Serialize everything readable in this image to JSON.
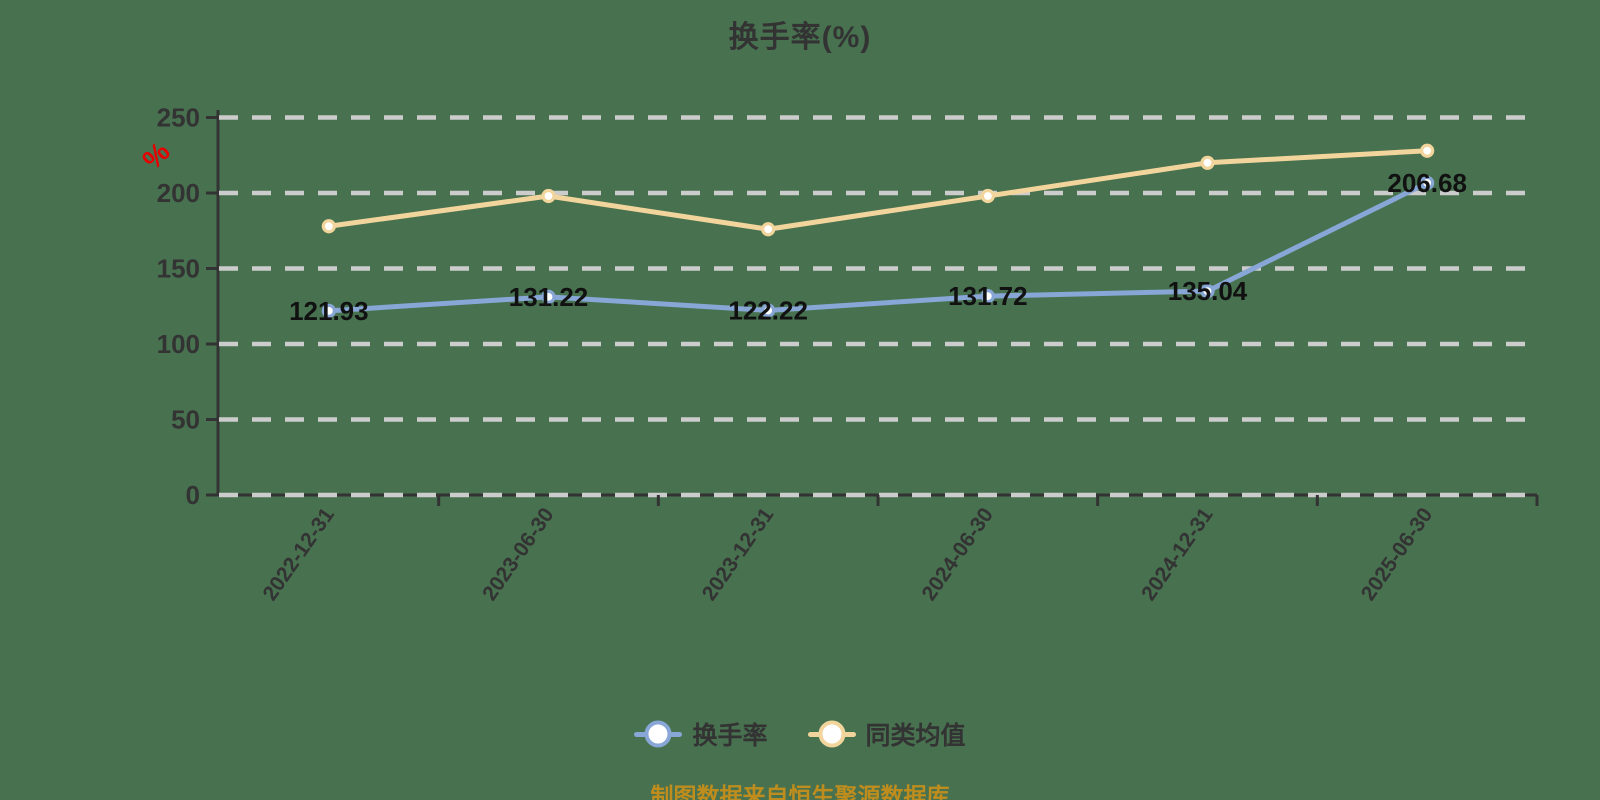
{
  "title": "换手率(%)",
  "y_axis_unit": "%",
  "footer": "制图数据来自恒生聚源数据库",
  "colors": {
    "background": "#47714f",
    "axis": "#333333",
    "gridline": "#cccccc",
    "text": "#333333",
    "value_label": "#111111",
    "unit_label": "#e60000",
    "footer_text": "#be8d1e",
    "series_turnover": "#88a6d6",
    "series_average": "#f2d59c",
    "marker_fill": "#ffffff"
  },
  "legend": {
    "items": [
      {
        "label": "换手率",
        "color": "#88a6d6"
      },
      {
        "label": "同类均值",
        "color": "#f2d59c"
      }
    ]
  },
  "chart_data": {
    "type": "line",
    "title": "换手率(%)",
    "categories": [
      "2022-12-31",
      "2023-06-30",
      "2023-12-31",
      "2024-06-30",
      "2024-12-31",
      "2025-06-30"
    ],
    "series": [
      {
        "name": "换手率",
        "color": "#88a6d6",
        "values": [
          121.93,
          131.22,
          122.22,
          131.72,
          135.04,
          206.68
        ],
        "value_labels_shown": true
      },
      {
        "name": "同类均值",
        "color": "#f2d59c",
        "values": [
          178,
          198,
          176,
          198,
          220,
          228
        ],
        "value_labels_shown": false
      }
    ],
    "xlabel": "",
    "ylabel": "%",
    "ylim": [
      0,
      250
    ],
    "y_ticks": [
      0,
      50,
      100,
      150,
      200,
      250
    ],
    "grid": "horizontal dashed",
    "legend_position": "bottom",
    "x_label_rotation_deg": -55
  }
}
